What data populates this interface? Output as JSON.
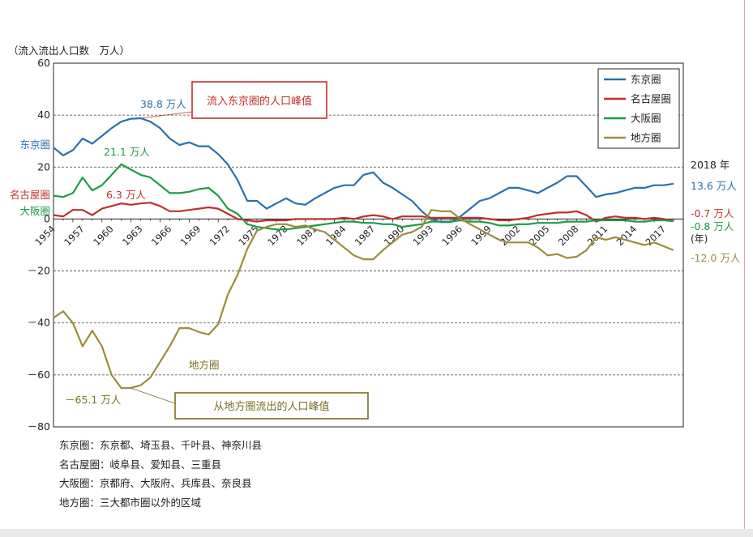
{
  "unit_label": "（流入流出人口数　万人）",
  "notes": [
    "东京圈：东京都、埼玉县、千叶县、神奈川县",
    "名古屋圈：岐阜县、爱知县、三重县",
    "大阪圈：京都府、大阪府、兵库县、奈良县",
    "地方圈：三大都市圈以外的区域"
  ],
  "chart_data": {
    "type": "line",
    "xlim": [
      1954,
      2019
    ],
    "ylim": [
      -80,
      60
    ],
    "yticks": [
      60,
      40,
      20,
      0,
      -20,
      -40,
      -60,
      -80
    ],
    "ytick_labels": [
      "60",
      "40",
      "20",
      "0",
      "－20",
      "－40",
      "－60",
      "－80"
    ],
    "xticks": [
      1954,
      1957,
      1960,
      1963,
      1966,
      1969,
      1972,
      1975,
      1978,
      1981,
      1984,
      1987,
      1990,
      1993,
      1996,
      1999,
      2002,
      2005,
      2008,
      2011,
      2014,
      2017
    ],
    "xunit_label": "(年)",
    "grid": "horizontal dashed at 40, 20, -20, -40, -60",
    "legend_position": "top-right",
    "x": [
      1954,
      1955,
      1956,
      1957,
      1958,
      1959,
      1960,
      1961,
      1962,
      1963,
      1964,
      1965,
      1966,
      1967,
      1968,
      1969,
      1970,
      1971,
      1972,
      1973,
      1974,
      1975,
      1976,
      1977,
      1978,
      1979,
      1980,
      1981,
      1982,
      1983,
      1984,
      1985,
      1986,
      1987,
      1988,
      1989,
      1990,
      1991,
      1992,
      1993,
      1994,
      1995,
      1996,
      1997,
      1998,
      1999,
      2000,
      2001,
      2002,
      2003,
      2004,
      2005,
      2006,
      2007,
      2008,
      2009,
      2010,
      2011,
      2012,
      2013,
      2014,
      2015,
      2016,
      2017,
      2018
    ],
    "series": [
      {
        "name": "东京圈",
        "color": "#2a70b0",
        "side_label": "东京圈",
        "end_label": "13.6 万人",
        "values": [
          27.5,
          24.5,
          26.5,
          31,
          29,
          32,
          35,
          37.5,
          38.6,
          38.8,
          37.5,
          35,
          31,
          28.5,
          29.5,
          28,
          28,
          25,
          21,
          15,
          7,
          7,
          4,
          6,
          8,
          6,
          5.5,
          8,
          10,
          12,
          13,
          13,
          17,
          18,
          14,
          12,
          9.5,
          7,
          3,
          0,
          -1.2,
          -1.2,
          1,
          4,
          7,
          8,
          10,
          12,
          12,
          11,
          10,
          12,
          14,
          16.5,
          16.5,
          12.5,
          8.5,
          9.5,
          10,
          11,
          12,
          12,
          13,
          13,
          13.6
        ]
      },
      {
        "name": "名古屋圈",
        "color": "#c0302c",
        "side_label": "名古屋圈",
        "end_label": "-0.7 万人",
        "values": [
          1.5,
          1,
          3.5,
          3.5,
          1.5,
          4,
          5,
          6,
          5.5,
          6,
          6.3,
          5,
          3,
          3,
          3.5,
          4,
          4.5,
          4,
          2,
          0,
          -0.5,
          -1,
          -0.5,
          -0.5,
          -0.5,
          0,
          0,
          0,
          0,
          0,
          0.5,
          0,
          1,
          1.5,
          1,
          0,
          1,
          1,
          1,
          0.5,
          0.5,
          0.5,
          0.5,
          0.5,
          0.5,
          0,
          -0.5,
          -0.5,
          0,
          0.5,
          1.5,
          2,
          2.5,
          2.5,
          3,
          1.5,
          -1,
          0.5,
          1,
          0.5,
          0.5,
          0,
          0.5,
          0,
          -0.7
        ]
      },
      {
        "name": "大阪圈",
        "color": "#1f9a48",
        "side_label": "大阪圈",
        "end_label": "-0.8 万人",
        "values": [
          9,
          8.5,
          10,
          16,
          11,
          13,
          17,
          21.1,
          19,
          17,
          16,
          13,
          10,
          10,
          10.5,
          11.5,
          12,
          9,
          4,
          2,
          -2,
          -3,
          -3.5,
          -4,
          -4,
          -3.5,
          -3,
          -2.5,
          -2,
          -1.5,
          -1,
          -1,
          -1.5,
          -1.5,
          -2,
          -2,
          -3,
          -2.5,
          -2,
          -1,
          -1,
          -1,
          -0.5,
          -1,
          -1,
          -1.5,
          -2.5,
          -2.5,
          -2,
          -2,
          -1.5,
          -1.5,
          -1.5,
          -1,
          -1,
          -1,
          -0.5,
          -0.5,
          -0.5,
          -0.5,
          -1,
          -1,
          -0.5,
          -0.5,
          -0.8
        ]
      },
      {
        "name": "地方圈",
        "color": "#9a8e3a",
        "side_label": "",
        "end_label": "-12.0 万人",
        "values": [
          -38,
          -35.5,
          -40,
          -49,
          -43,
          -49,
          -60,
          -65.1,
          -65,
          -64,
          -61,
          -55,
          -49,
          -42,
          -42,
          -43.5,
          -44.5,
          -40.5,
          -29,
          -21.5,
          -11.5,
          -4.5,
          -3,
          -2,
          -2,
          -3,
          -2.5,
          -4,
          -5,
          -8,
          -11,
          -14,
          -15.5,
          -15.5,
          -12,
          -9,
          -6,
          -5,
          -3,
          3.5,
          3,
          3,
          0,
          -2,
          -4,
          -6,
          -8,
          -9,
          -9,
          -9,
          -11,
          -14,
          -13.5,
          -15,
          -14.5,
          -12,
          -7,
          -8,
          -7,
          -8,
          -9,
          -10,
          -9,
          -10.5,
          -12
        ]
      }
    ],
    "annotations": [
      {
        "text": "38.8 万人",
        "color": "#2a70b0"
      },
      {
        "text": "21.1 万人",
        "color": "#1f9a48"
      },
      {
        "text": "6.3 万人",
        "color": "#c0302c"
      },
      {
        "text": "－65.1 万人",
        "color": "#7a6e20"
      },
      {
        "text": "地方圈",
        "color": "#7a6e20"
      },
      {
        "text": "2018 年",
        "color": "#222222"
      },
      {
        "text": "流入东京圈的人口峰值",
        "color": "#c0302c"
      },
      {
        "text": "从地方圈流出的人口峰值",
        "color": "#7a6e20"
      }
    ]
  }
}
